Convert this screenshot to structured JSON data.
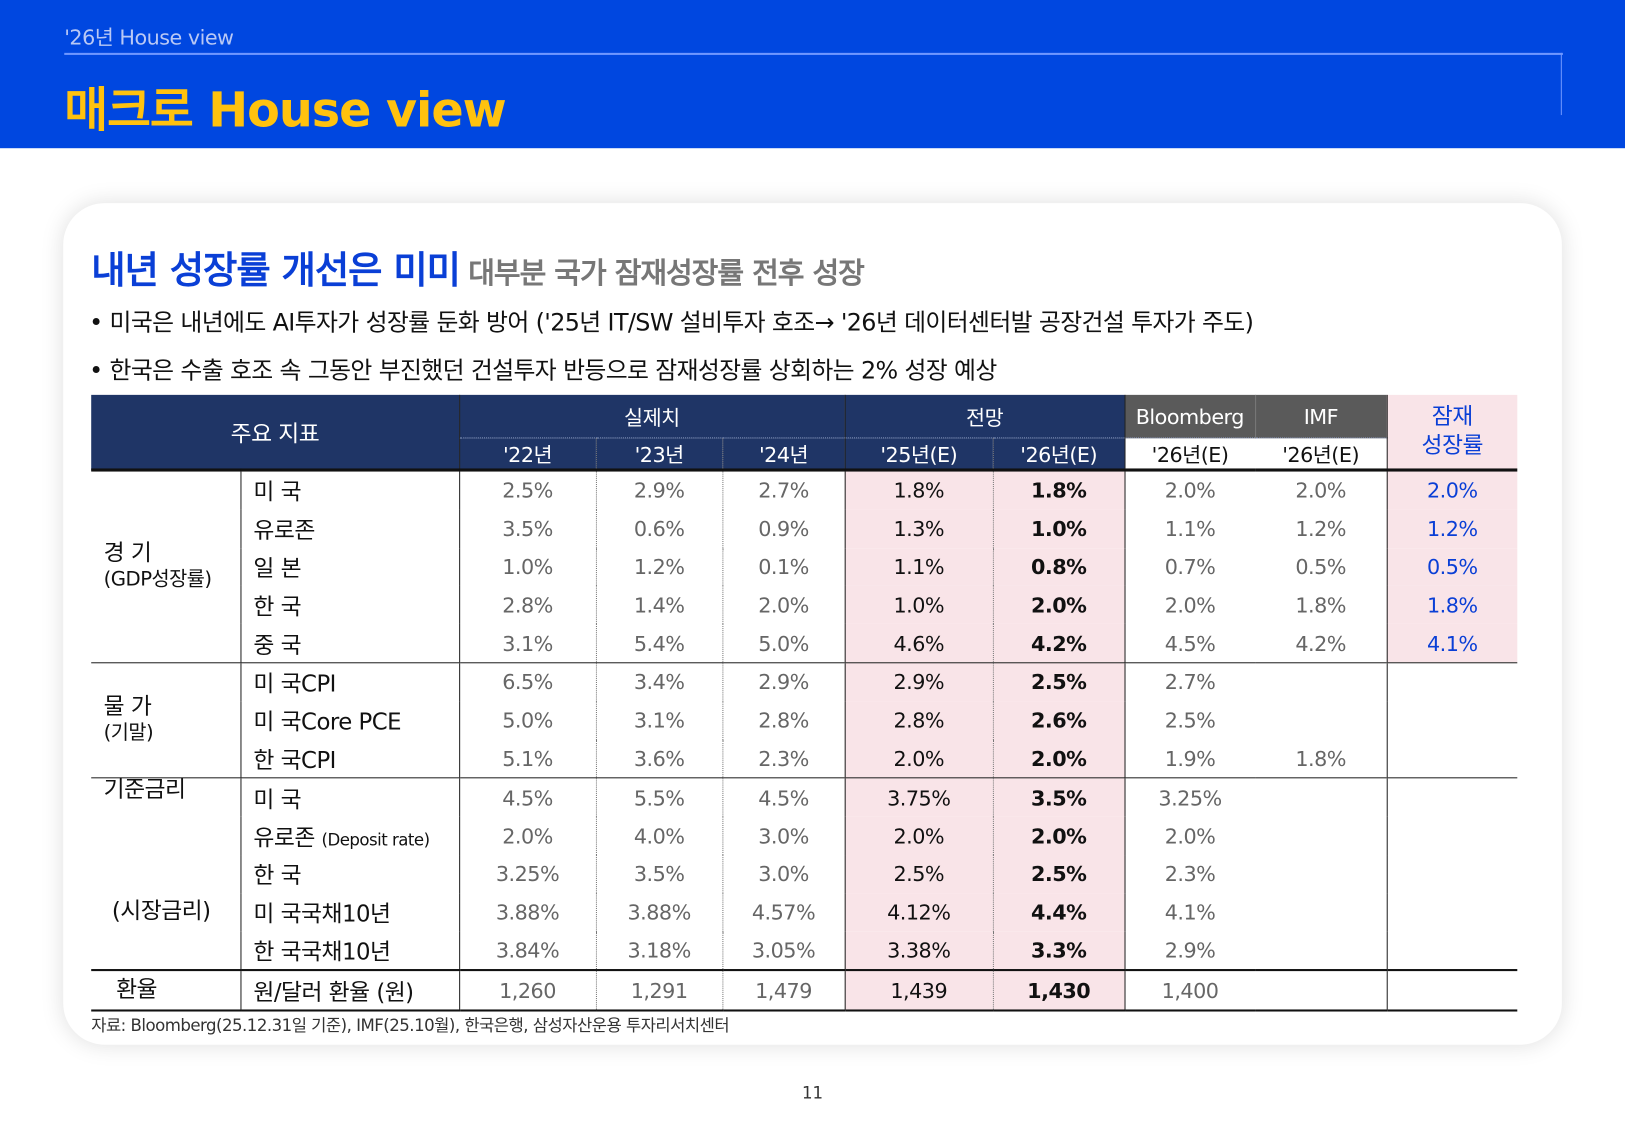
{
  "header": {
    "section": "'26년 House view",
    "title": "매크로 House view"
  },
  "headline": {
    "main": "내년 성장률 개선은 미미",
    "side": "대부분 국가 잠재성장률 전후 성장"
  },
  "bullets": [
    "• 미국은 내년에도 AI투자가 성장률 둔화 방어 ('25년 IT/SW 설비투자 호조→ '26년 데이터센터발 공장건설 투자가 주도)",
    "• 한국은 수출 호조 속 그동안 부진했던 건설투자 반등으로 잠재성장률 상회하는 2% 성장 예상"
  ],
  "table": {
    "head": {
      "indicator": "주요 지표",
      "actual": "실제치",
      "forecast": "전망",
      "bloomberg": "Bloomberg",
      "imf": "IMF",
      "potential_1": "잠재",
      "potential_2": "성장률",
      "years": [
        "'22년",
        "'23년",
        "'24년",
        "'25년(E)",
        "'26년(E)",
        "'26년(E)",
        "'26년(E)"
      ]
    },
    "groups": {
      "gdp": "경 기",
      "gdp_sub": "(GDP성장률)",
      "price": "물 가",
      "price_sub": "(기말)",
      "rate": "기준금리",
      "market": "(시장금리)",
      "fx": "환율"
    },
    "rows": [
      {
        "item": "미 국",
        "v": [
          "2.5%",
          "2.9%",
          "2.7%",
          "1.8%",
          "1.8%",
          "2.0%",
          "2.0%",
          "2.0%"
        ]
      },
      {
        "item": "유로존",
        "v": [
          "3.5%",
          "0.6%",
          "0.9%",
          "1.3%",
          "1.0%",
          "1.1%",
          "1.2%",
          "1.2%"
        ]
      },
      {
        "item": "일 본",
        "v": [
          "1.0%",
          "1.2%",
          "0.1%",
          "1.1%",
          "0.8%",
          "0.7%",
          "0.5%",
          "0.5%"
        ]
      },
      {
        "item": "한 국",
        "v": [
          "2.8%",
          "1.4%",
          "2.0%",
          "1.0%",
          "2.0%",
          "2.0%",
          "1.8%",
          "1.8%"
        ]
      },
      {
        "item": "중 국",
        "v": [
          "3.1%",
          "5.4%",
          "5.0%",
          "4.6%",
          "4.2%",
          "4.5%",
          "4.2%",
          "4.1%"
        ]
      },
      {
        "item": "미 국CPI",
        "v": [
          "6.5%",
          "3.4%",
          "2.9%",
          "2.9%",
          "2.5%",
          "2.7%",
          "",
          ""
        ]
      },
      {
        "item": "미 국Core PCE",
        "v": [
          "5.0%",
          "3.1%",
          "2.8%",
          "2.8%",
          "2.6%",
          "2.5%",
          "",
          ""
        ]
      },
      {
        "item": "한 국CPI",
        "v": [
          "5.1%",
          "3.6%",
          "2.3%",
          "2.0%",
          "2.0%",
          "1.9%",
          "1.8%",
          ""
        ]
      },
      {
        "item": "미 국",
        "v": [
          "4.5%",
          "5.5%",
          "4.5%",
          "3.75%",
          "3.5%",
          "3.25%",
          "",
          ""
        ]
      },
      {
        "item": "유로존",
        "item_note": "(Deposit rate)",
        "v": [
          "2.0%",
          "4.0%",
          "3.0%",
          "2.0%",
          "2.0%",
          "2.0%",
          "",
          ""
        ]
      },
      {
        "item": "한 국",
        "v": [
          "3.25%",
          "3.5%",
          "3.0%",
          "2.5%",
          "2.5%",
          "2.3%",
          "",
          ""
        ]
      },
      {
        "item": "미 국국채10년",
        "v": [
          "3.88%",
          "3.88%",
          "4.57%",
          "4.12%",
          "4.4%",
          "4.1%",
          "",
          ""
        ]
      },
      {
        "item": "한 국국채10년",
        "v": [
          "3.84%",
          "3.18%",
          "3.05%",
          "3.38%",
          "3.3%",
          "2.9%",
          "",
          ""
        ]
      },
      {
        "item": "원/달러 환율 (원)",
        "v": [
          "1,260",
          "1,291",
          "1,479",
          "1,439",
          "1,430",
          "1,400",
          "",
          ""
        ]
      }
    ]
  },
  "source": "자료: Bloomberg(25.12.31일 기준), IMF(25.10월), 한국은행, 삼성자산운용 투자리서치센터",
  "page_number": "11",
  "colors": {
    "header_bg": "#0047e0",
    "title": "#ffc20e",
    "table_head": "#1f3566",
    "highlight": "#f9e4e8",
    "accent": "#0a3fd6"
  }
}
